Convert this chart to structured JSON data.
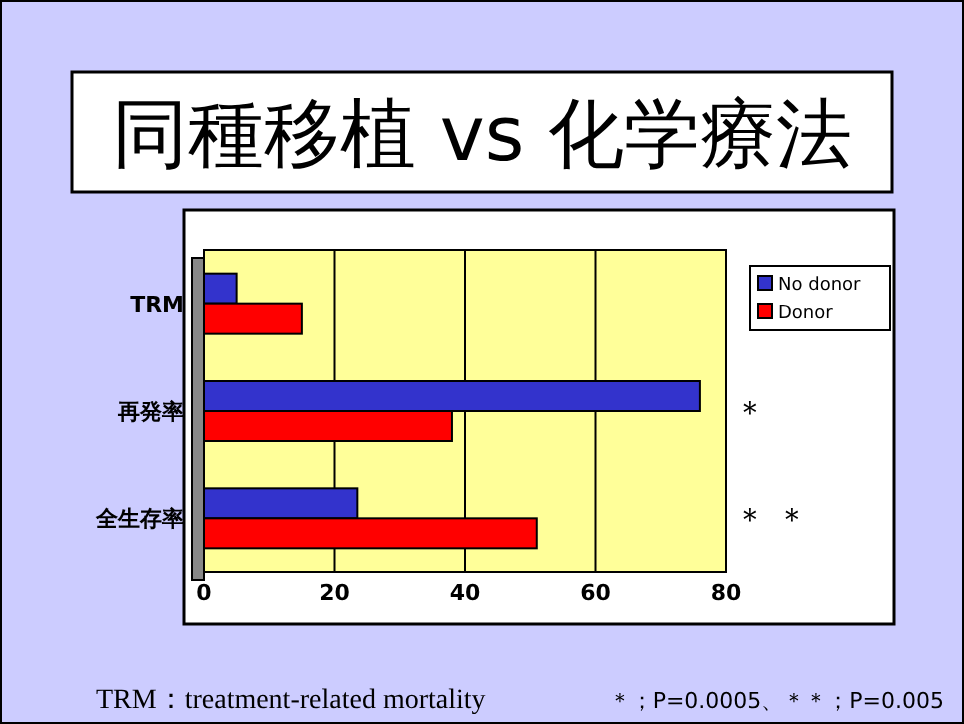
{
  "chart_data": {
    "type": "bar",
    "orientation": "horizontal",
    "title": "同種移植 vs 化学療法",
    "categories": [
      "TRM",
      "再発率",
      "全生存率"
    ],
    "series": [
      {
        "name": "No donor",
        "color": "#3333cc",
        "values": [
          5,
          76,
          23.5
        ]
      },
      {
        "name": "Donor",
        "color": "#ff0000",
        "values": [
          15,
          38,
          51
        ]
      }
    ],
    "xlim": [
      0,
      80
    ],
    "xticks": [
      0,
      20,
      40,
      60,
      80
    ],
    "grid": "x",
    "legend": "top right",
    "annotations": [
      "＊",
      "＊ ＊",
      "TRM：treatment-related mortality",
      "＊；P=0.0005、＊＊；P=0.005"
    ]
  }
}
